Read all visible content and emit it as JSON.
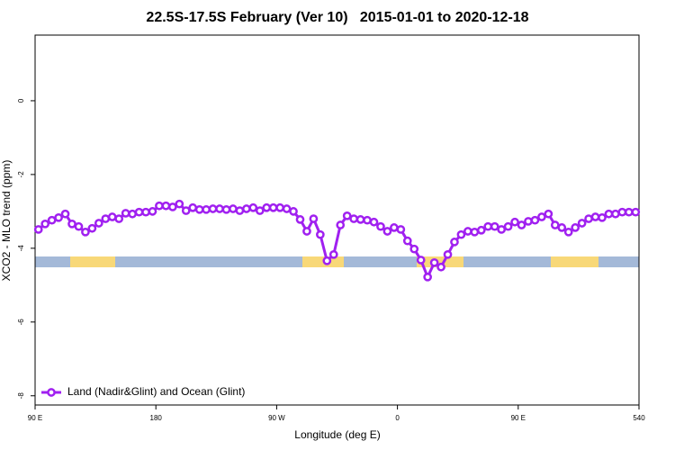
{
  "chart_data": {
    "type": "line",
    "title": "22.5S-17.5S February (Ver 10)   2015-01-01 to 2020-12-18",
    "xlabel": "Longitude (deg E)",
    "ylabel": "XCO2 - MLO trend (ppm)",
    "xlim": [
      90,
      540
    ],
    "xticks": [
      {
        "value": 90,
        "label": "90 E"
      },
      180,
      {
        "value": 270,
        "label": "90 W"
      },
      {
        "value": 360,
        "label": "0"
      },
      {
        "value": 450,
        "label": "90 E"
      },
      540
    ],
    "ylim": [
      -8.25,
      1.78
    ],
    "yticks": [
      0,
      -2,
      -4,
      -6,
      -8
    ],
    "legend": "bottom-left",
    "series": [
      {
        "name": "Land (Nadir&Glint) and Ocean (Glint)",
        "color": "#a020f0",
        "x": [
          92.5,
          97.5,
          102.5,
          107.5,
          112.5,
          117.5,
          122.5,
          127.5,
          132.5,
          137.5,
          142.5,
          147.5,
          152.5,
          157.5,
          162.5,
          167.5,
          172.5,
          177.5,
          182.5,
          187.5,
          192.5,
          197.5,
          202.5,
          207.5,
          212.5,
          217.5,
          222.5,
          227.5,
          232.5,
          237.5,
          242.5,
          247.5,
          252.5,
          257.5,
          262.5,
          267.5,
          272.5,
          277.5,
          282.5,
          287.5,
          292.5,
          297.5,
          302.5,
          307.5,
          312.5,
          317.5,
          322.5,
          327.5,
          332.5,
          337.5,
          342.5,
          347.5,
          352.5,
          357.5,
          362.5,
          367.5,
          372.5,
          377.5,
          382.5,
          387.5,
          392.5,
          397.5,
          402.5,
          407.5,
          412.5,
          417.5,
          422.5,
          427.5,
          432.5,
          437.5,
          442.5,
          447.5,
          452.5,
          457.5,
          462.5,
          467.5,
          472.5,
          477.5,
          482.5,
          487.5,
          492.5,
          497.5,
          502.5,
          507.5,
          512.5,
          517.5,
          522.5,
          527.5,
          532.5,
          537.5
        ],
        "values": [
          -3.49,
          -3.34,
          -3.24,
          -3.17,
          -3.07,
          -3.34,
          -3.41,
          -3.56,
          -3.46,
          -3.32,
          -3.2,
          -3.15,
          -3.2,
          -3.05,
          -3.07,
          -3.02,
          -3.02,
          -3.0,
          -2.85,
          -2.85,
          -2.88,
          -2.8,
          -2.98,
          -2.9,
          -2.95,
          -2.95,
          -2.93,
          -2.93,
          -2.95,
          -2.93,
          -2.98,
          -2.93,
          -2.9,
          -2.98,
          -2.9,
          -2.9,
          -2.9,
          -2.93,
          -3.0,
          -3.22,
          -3.54,
          -3.2,
          -3.63,
          -4.34,
          -4.17,
          -3.37,
          -3.12,
          -3.2,
          -3.22,
          -3.24,
          -3.29,
          -3.41,
          -3.54,
          -3.44,
          -3.49,
          -3.8,
          -4.02,
          -4.32,
          -4.78,
          -4.39,
          -4.51,
          -4.17,
          -3.83,
          -3.63,
          -3.54,
          -3.56,
          -3.51,
          -3.41,
          -3.41,
          -3.49,
          -3.41,
          -3.29,
          -3.37,
          -3.27,
          -3.24,
          -3.15,
          -3.07,
          -3.37,
          -3.44,
          -3.56,
          -3.44,
          -3.32,
          -3.2,
          -3.15,
          -3.17,
          -3.07,
          -3.07,
          -3.02,
          -3.02,
          -3.02
        ]
      }
    ]
  }
}
